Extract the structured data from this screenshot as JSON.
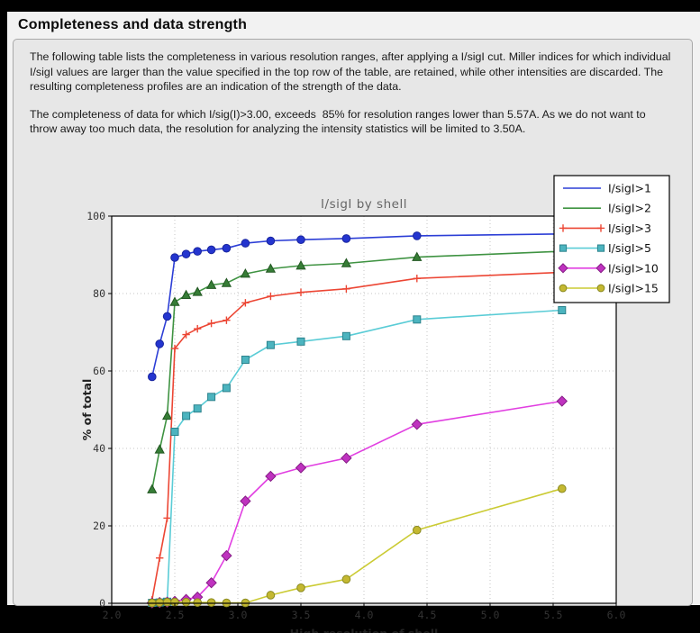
{
  "page": {
    "title": "Completeness and data strength"
  },
  "paragraphs": {
    "p1": "The following table lists the completeness in various resolution ranges, after applying a I/sigI cut. Miller indices for which individual I/sigI values are larger than the value specified in the top row of the table, are retained, while other intensities are discarded. The resulting completeness profiles are an indication of the strength of the data.",
    "p2": "The completeness of data for which I/sig(I)>3.00, exceeds  85% for resolution ranges lower than 5.57A. As we do not want to throw away too much data, the resolution for analyzing the intensity statistics will be limited to 3.50A."
  },
  "chart_data": {
    "type": "line",
    "title": "I/sigI by shell",
    "xlabel": "High resolution of shell",
    "ylabel": "% of total",
    "xlim": [
      2.0,
      6.0
    ],
    "ylim": [
      0,
      100
    ],
    "xticks": [
      "2.0",
      "2.5",
      "3.0",
      "3.5",
      "4.0",
      "4.5",
      "5.0",
      "5.5",
      "6.0"
    ],
    "yticks": [
      0,
      20,
      40,
      60,
      80,
      100
    ],
    "grid": true,
    "legend_position": "upper right",
    "x": [
      2.32,
      2.38,
      2.44,
      2.5,
      2.59,
      2.68,
      2.79,
      2.91,
      3.06,
      3.26,
      3.5,
      3.86,
      4.42,
      5.57
    ],
    "series": [
      {
        "name": "I/sigI>1",
        "marker": "circle",
        "line": "#2c3ed6",
        "fill": "#2435cf",
        "edge": "#18249e",
        "values": [
          58.5,
          67.0,
          74.1,
          89.3,
          90.2,
          90.9,
          91.3,
          91.7,
          93.0,
          93.6,
          93.9,
          94.2,
          94.9,
          95.4
        ]
      },
      {
        "name": "I/sigI>2",
        "marker": "triangle",
        "line": "#3f9342",
        "fill": "#367d36",
        "edge": "#225722",
        "values": [
          29.4,
          39.7,
          48.4,
          77.8,
          79.6,
          80.4,
          82.2,
          82.7,
          85.1,
          86.4,
          87.2,
          87.8,
          89.4,
          90.9
        ]
      },
      {
        "name": "I/sigI>3",
        "marker": "plus",
        "line": "#ec4634",
        "fill": "none",
        "edge": "#ec4634",
        "values": [
          0.9,
          11.7,
          22.0,
          65.8,
          69.4,
          70.9,
          72.3,
          73.1,
          77.6,
          79.3,
          80.3,
          81.2,
          83.9,
          85.5
        ]
      },
      {
        "name": "I/sigI>5",
        "marker": "square",
        "line": "#5accd6",
        "fill": "#4cb4bf",
        "edge": "#2b828c",
        "values": [
          0.1,
          0.2,
          0.4,
          44.3,
          48.4,
          50.3,
          53.3,
          55.6,
          62.9,
          66.7,
          67.6,
          69.0,
          73.3,
          75.7
        ]
      },
      {
        "name": "I/sigI>10",
        "marker": "diamond",
        "line": "#e13fe1",
        "fill": "#bf32bf",
        "edge": "#861e86",
        "values": [
          0.1,
          0.2,
          0.3,
          0.5,
          1.0,
          1.6,
          5.3,
          12.3,
          26.4,
          32.8,
          35.0,
          37.5,
          46.2,
          52.2
        ]
      },
      {
        "name": "I/sigI>15",
        "marker": "circle",
        "line": "#cbcb34",
        "fill": "#c4b831",
        "edge": "#8a8a20",
        "values": [
          0.1,
          0.2,
          0.3,
          0.3,
          0.3,
          0.2,
          0.2,
          0.1,
          0.1,
          2.1,
          4.0,
          6.2,
          18.9,
          29.6
        ]
      }
    ],
    "colors": {
      "plot_bg": "#ffffff",
      "figure_bg": "#e7e7e7",
      "grid": "#c4c4c4",
      "axis": "#000000",
      "legend_bg": "#ffffff",
      "legend_border": "#000000"
    }
  }
}
